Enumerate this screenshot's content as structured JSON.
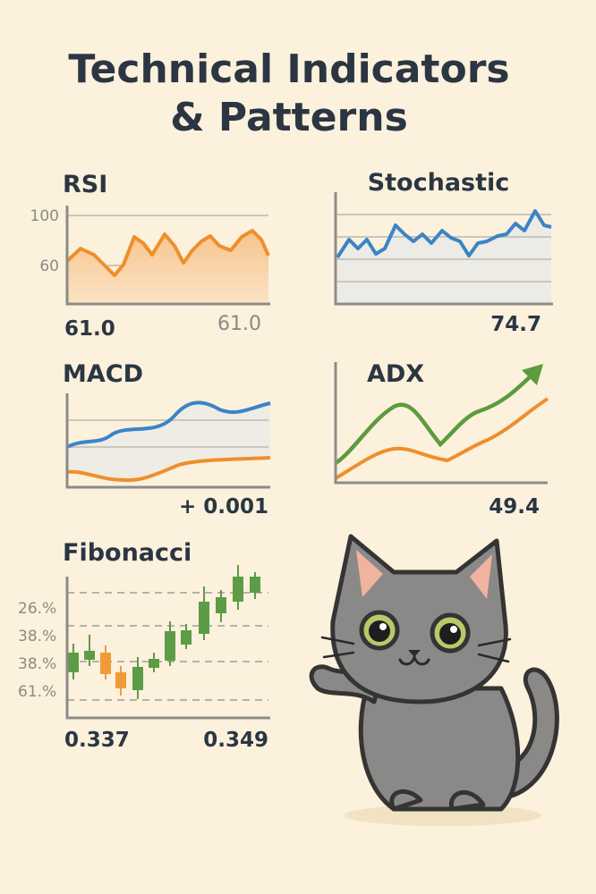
{
  "title": [
    "Technical Indicators",
    "& Patterns"
  ],
  "panels": [
    {
      "label": "RSI",
      "ticks": [
        "100",
        "60"
      ],
      "left": "61.0",
      "right": "61.0"
    },
    {
      "label": "Stochastic",
      "right": "74.7"
    },
    {
      "label": "MACD",
      "right": "+ 0.001"
    },
    {
      "label": "ADX",
      "right": "49.4"
    },
    {
      "label": "Fibonacci",
      "ticks": [
        "26.%",
        "38.%",
        "38.%",
        "61.%"
      ],
      "left": "0.337",
      "right": "0.349"
    }
  ]
}
